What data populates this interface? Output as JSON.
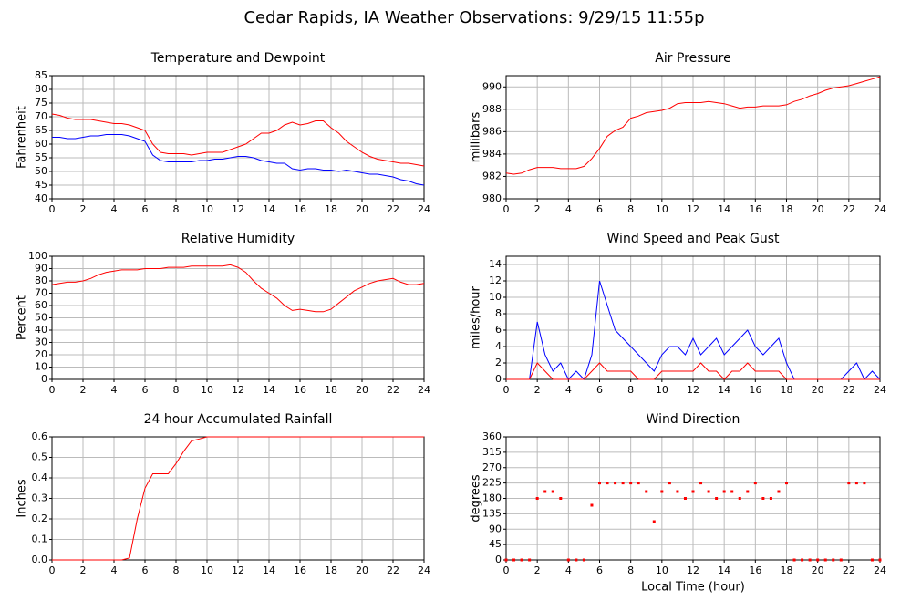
{
  "title": "Cedar Rapids, IA Weather Observations: 9/29/15 11:55p",
  "x_label": "Local Time (hour)",
  "chart_data": [
    {
      "type": "line",
      "title": "Temperature and Dewpoint",
      "y_label": "Fahrenheit",
      "grid": true,
      "x": [
        0,
        0.5,
        1,
        1.5,
        2,
        2.5,
        3,
        3.5,
        4,
        4.5,
        5,
        5.5,
        6,
        6.5,
        7,
        7.5,
        8,
        8.5,
        9,
        9.5,
        10,
        10.5,
        11,
        11.5,
        12,
        12.5,
        13,
        13.5,
        14,
        14.5,
        15,
        15.5,
        16,
        16.5,
        17,
        17.5,
        18,
        18.5,
        19,
        19.5,
        20,
        20.5,
        21,
        21.5,
        22,
        22.5,
        23,
        23.5,
        24
      ],
      "series": [
        {
          "color": "#ff0000",
          "values": [
            71,
            70.5,
            69.5,
            69,
            69,
            69,
            68.5,
            68,
            67.5,
            67.5,
            67,
            66,
            65,
            60,
            57,
            56.5,
            56.5,
            56.5,
            56,
            56.5,
            57,
            57,
            57,
            58,
            59,
            60,
            62,
            64,
            64,
            65,
            67,
            68,
            67,
            67.5,
            68.5,
            68.5,
            66,
            64,
            61,
            59,
            57,
            55.5,
            54.5,
            54,
            53.5,
            53,
            53,
            52.5,
            52
          ]
        },
        {
          "color": "#0000ff",
          "values": [
            62.5,
            62.5,
            62,
            62,
            62.5,
            63,
            63,
            63.5,
            63.5,
            63.5,
            63,
            62,
            61,
            56,
            54,
            53.5,
            53.5,
            53.5,
            53.5,
            54,
            54,
            54.5,
            54.5,
            55,
            55.5,
            55.5,
            55,
            54,
            53.5,
            53,
            53,
            51,
            50.5,
            51,
            51,
            50.5,
            50.5,
            50,
            50.5,
            50,
            49.5,
            49,
            49,
            48.5,
            48,
            47,
            46.5,
            45.5,
            45
          ]
        }
      ],
      "xlim": [
        0,
        24
      ],
      "xticks": [
        0,
        2,
        4,
        6,
        8,
        10,
        12,
        14,
        16,
        18,
        20,
        22,
        24
      ],
      "ylim": [
        40,
        85
      ],
      "yticks": [
        40,
        45,
        50,
        55,
        60,
        65,
        70,
        75,
        80,
        85
      ]
    },
    {
      "type": "line",
      "title": "Air Pressure",
      "y_label": "millibars",
      "grid": true,
      "x": [
        0,
        0.5,
        1,
        1.5,
        2,
        2.5,
        3,
        3.5,
        4,
        4.5,
        5,
        5.5,
        6,
        6.5,
        7,
        7.5,
        8,
        8.5,
        9,
        9.5,
        10,
        10.5,
        11,
        11.5,
        12,
        12.5,
        13,
        13.5,
        14,
        14.5,
        15,
        15.5,
        16,
        16.5,
        17,
        17.5,
        18,
        18.5,
        19,
        19.5,
        20,
        20.5,
        21,
        21.5,
        22,
        22.5,
        23,
        23.5,
        24
      ],
      "series": [
        {
          "color": "#ff0000",
          "values": [
            982.3,
            982.2,
            982.3,
            982.6,
            982.8,
            982.8,
            982.8,
            982.7,
            982.7,
            982.7,
            982.9,
            983.6,
            984.5,
            985.6,
            986.1,
            986.4,
            987.2,
            987.4,
            987.7,
            987.8,
            987.9,
            988.1,
            988.5,
            988.6,
            988.6,
            988.6,
            988.7,
            988.6,
            988.5,
            988.3,
            988.1,
            988.2,
            988.2,
            988.3,
            988.3,
            988.3,
            988.4,
            988.7,
            988.9,
            989.2,
            989.4,
            989.7,
            989.9,
            990.0,
            990.1,
            990.3,
            990.5,
            990.7,
            990.9
          ]
        }
      ],
      "xlim": [
        0,
        24
      ],
      "xticks": [
        0,
        2,
        4,
        6,
        8,
        10,
        12,
        14,
        16,
        18,
        20,
        22,
        24
      ],
      "ylim": [
        980,
        991
      ],
      "yticks": [
        980,
        982,
        984,
        986,
        988,
        990
      ]
    },
    {
      "type": "line",
      "title": "Relative Humidity",
      "y_label": "Percent",
      "grid": true,
      "x": [
        0,
        0.5,
        1,
        1.5,
        2,
        2.5,
        3,
        3.5,
        4,
        4.5,
        5,
        5.5,
        6,
        6.5,
        7,
        7.5,
        8,
        8.5,
        9,
        9.5,
        10,
        10.5,
        11,
        11.5,
        12,
        12.5,
        13,
        13.5,
        14,
        14.5,
        15,
        15.5,
        16,
        16.5,
        17,
        17.5,
        18,
        18.5,
        19,
        19.5,
        20,
        20.5,
        21,
        21.5,
        22,
        22.5,
        23,
        23.5,
        24
      ],
      "series": [
        {
          "color": "#ff0000",
          "values": [
            77,
            78,
            79,
            79,
            80,
            82,
            85,
            87,
            88,
            89,
            89,
            89,
            90,
            90,
            90,
            91,
            91,
            91,
            92,
            92,
            92,
            92,
            92,
            93,
            91,
            87,
            80,
            74,
            70,
            66,
            60,
            56,
            57,
            56,
            55,
            55,
            57,
            62,
            67,
            72,
            75,
            78,
            80,
            81,
            82,
            79,
            77,
            77,
            78
          ]
        }
      ],
      "xlim": [
        0,
        24
      ],
      "xticks": [
        0,
        2,
        4,
        6,
        8,
        10,
        12,
        14,
        16,
        18,
        20,
        22,
        24
      ],
      "ylim": [
        0,
        100
      ],
      "yticks": [
        0,
        10,
        20,
        30,
        40,
        50,
        60,
        70,
        80,
        90,
        100
      ]
    },
    {
      "type": "line",
      "title": "Wind Speed and Peak Gust",
      "y_label": "miles/hour",
      "grid": true,
      "x": [
        0,
        0.5,
        1,
        1.5,
        2,
        2.5,
        3,
        3.5,
        4,
        4.5,
        5,
        5.5,
        6,
        6.5,
        7,
        7.5,
        8,
        8.5,
        9,
        9.5,
        10,
        10.5,
        11,
        11.5,
        12,
        12.5,
        13,
        13.5,
        14,
        14.5,
        15,
        15.5,
        16,
        16.5,
        17,
        17.5,
        18,
        18.5,
        19,
        19.5,
        20,
        20.5,
        21,
        21.5,
        22,
        22.5,
        23,
        23.5,
        24
      ],
      "series": [
        {
          "color": "#0000ff",
          "values": [
            0,
            0,
            0,
            0,
            7,
            3,
            1,
            2,
            0,
            1,
            0,
            3,
            12,
            9,
            6,
            5,
            4,
            3,
            2,
            1,
            3,
            4,
            4,
            3,
            5,
            3,
            4,
            5,
            3,
            4,
            5,
            6,
            4,
            3,
            4,
            5,
            2,
            0,
            0,
            0,
            0,
            0,
            0,
            0,
            1,
            2,
            0,
            1,
            0
          ]
        },
        {
          "color": "#ff0000",
          "values": [
            0,
            0,
            0,
            0,
            2,
            1,
            0,
            0,
            0,
            0,
            0,
            1,
            2,
            1,
            1,
            1,
            1,
            0,
            0,
            0,
            1,
            1,
            1,
            1,
            1,
            2,
            1,
            1,
            0,
            1,
            1,
            2,
            1,
            1,
            1,
            1,
            0,
            0,
            0,
            0,
            0,
            0,
            0,
            0,
            0,
            0,
            0,
            0,
            0
          ]
        }
      ],
      "xlim": [
        0,
        24
      ],
      "xticks": [
        0,
        2,
        4,
        6,
        8,
        10,
        12,
        14,
        16,
        18,
        20,
        22,
        24
      ],
      "ylim": [
        0,
        15
      ],
      "yticks": [
        0,
        2,
        4,
        6,
        8,
        10,
        12,
        14
      ]
    },
    {
      "type": "line",
      "title": "24 hour Accumulated Rainfall",
      "y_label": "Inches",
      "grid": true,
      "x": [
        0,
        0.5,
        1,
        1.5,
        2,
        2.5,
        3,
        3.5,
        4,
        4.5,
        5,
        5.5,
        6,
        6.5,
        7,
        7.5,
        8,
        8.5,
        9,
        9.5,
        10,
        10.5,
        11,
        11.5,
        12,
        12.5,
        13,
        13.5,
        14,
        14.5,
        15,
        15.5,
        16,
        16.5,
        17,
        17.5,
        18,
        18.5,
        19,
        19.5,
        20,
        20.5,
        21,
        21.5,
        22,
        22.5,
        23,
        23.5,
        24
      ],
      "series": [
        {
          "color": "#ff0000",
          "values": [
            0,
            0,
            0,
            0,
            0,
            0,
            0,
            0,
            0,
            0,
            0.01,
            0.2,
            0.35,
            0.42,
            0.42,
            0.42,
            0.47,
            0.53,
            0.58,
            0.59,
            0.6,
            0.6,
            0.6,
            0.6,
            0.6,
            0.6,
            0.6,
            0.6,
            0.6,
            0.6,
            0.6,
            0.6,
            0.6,
            0.6,
            0.6,
            0.6,
            0.6,
            0.6,
            0.6,
            0.6,
            0.6,
            0.6,
            0.6,
            0.6,
            0.6,
            0.6,
            0.6,
            0.6,
            0.6
          ]
        }
      ],
      "xlim": [
        0,
        24
      ],
      "xticks": [
        0,
        2,
        4,
        6,
        8,
        10,
        12,
        14,
        16,
        18,
        20,
        22,
        24
      ],
      "ylim": [
        0,
        0.6
      ],
      "yticks": [
        {
          "value": 0,
          "label": "0.0"
        },
        0.1,
        0.2,
        0.3,
        0.4,
        0.5,
        0.6
      ]
    },
    {
      "type": "scatter",
      "title": "Wind Direction",
      "y_label": "degrees",
      "grid": true,
      "color": "#ff0000",
      "x": [
        0,
        0.5,
        1,
        1.5,
        2,
        2.5,
        3,
        3.5,
        4,
        4.5,
        5,
        5.5,
        6,
        6.5,
        7,
        7.5,
        8,
        8.5,
        9,
        9.5,
        10,
        10.5,
        11,
        11.5,
        12,
        12.5,
        13,
        13.5,
        14,
        14.5,
        15,
        15.5,
        16,
        16.5,
        17,
        17.5,
        18,
        18.5,
        19,
        19.5,
        20,
        20.5,
        21,
        21.5,
        22,
        22.5,
        23,
        23.5,
        24
      ],
      "values": [
        0,
        0,
        0,
        0,
        180,
        200,
        200,
        180,
        0,
        0,
        0,
        160,
        225,
        225,
        225,
        225,
        225,
        225,
        200,
        112,
        200,
        225,
        200,
        180,
        200,
        225,
        200,
        180,
        200,
        200,
        180,
        200,
        225,
        180,
        180,
        200,
        225,
        0,
        0,
        0,
        0,
        0,
        0,
        0,
        225,
        225,
        225,
        0,
        0
      ],
      "xlim": [
        0,
        24
      ],
      "xticks": [
        0,
        2,
        4,
        6,
        8,
        10,
        12,
        14,
        16,
        18,
        20,
        22,
        24
      ],
      "ylim": [
        0,
        360
      ],
      "yticks": [
        0,
        45,
        90,
        135,
        180,
        225,
        270,
        315,
        360
      ]
    }
  ]
}
